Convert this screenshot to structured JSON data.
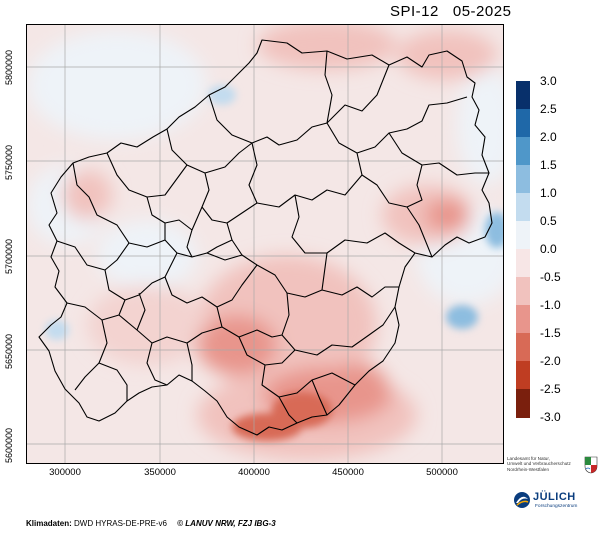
{
  "title": {
    "index": "SPI-12",
    "period": "05-2025"
  },
  "axes": {
    "x_ticks": [
      "300000",
      "350000",
      "400000",
      "450000",
      "500000"
    ],
    "y_ticks": [
      "5800000",
      "5750000",
      "5700000",
      "5650000",
      "5600000"
    ]
  },
  "colorbar": {
    "labels": [
      "3.0",
      "2.5",
      "2.0",
      "1.5",
      "1.0",
      "0.5",
      "0.0",
      "-0.5",
      "-1.0",
      "-1.5",
      "-2.0",
      "-2.5",
      "-3.0"
    ],
    "colors": [
      "#08306b",
      "#1f68a8",
      "#4f97c9",
      "#8dbde0",
      "#c3dcef",
      "#eef3f8",
      "#f7e6e6",
      "#f1c2be",
      "#e8958c",
      "#d86a56",
      "#bf3d22",
      "#7a1f0d"
    ]
  },
  "footer": {
    "prefix": "Klimadaten:",
    "source": "DWD HYRAS-DE-PRE-v6",
    "credit": "© LANUV NRW, FZJ IBG-3"
  },
  "logos": {
    "lanuv": [
      "Landesamt für Natur,",
      "Umwelt und Verbraucherschutz",
      "Nordrhein-Westfalen"
    ],
    "juelich": {
      "name": "JÜLICH",
      "sub": "Forschungszentrum"
    }
  }
}
